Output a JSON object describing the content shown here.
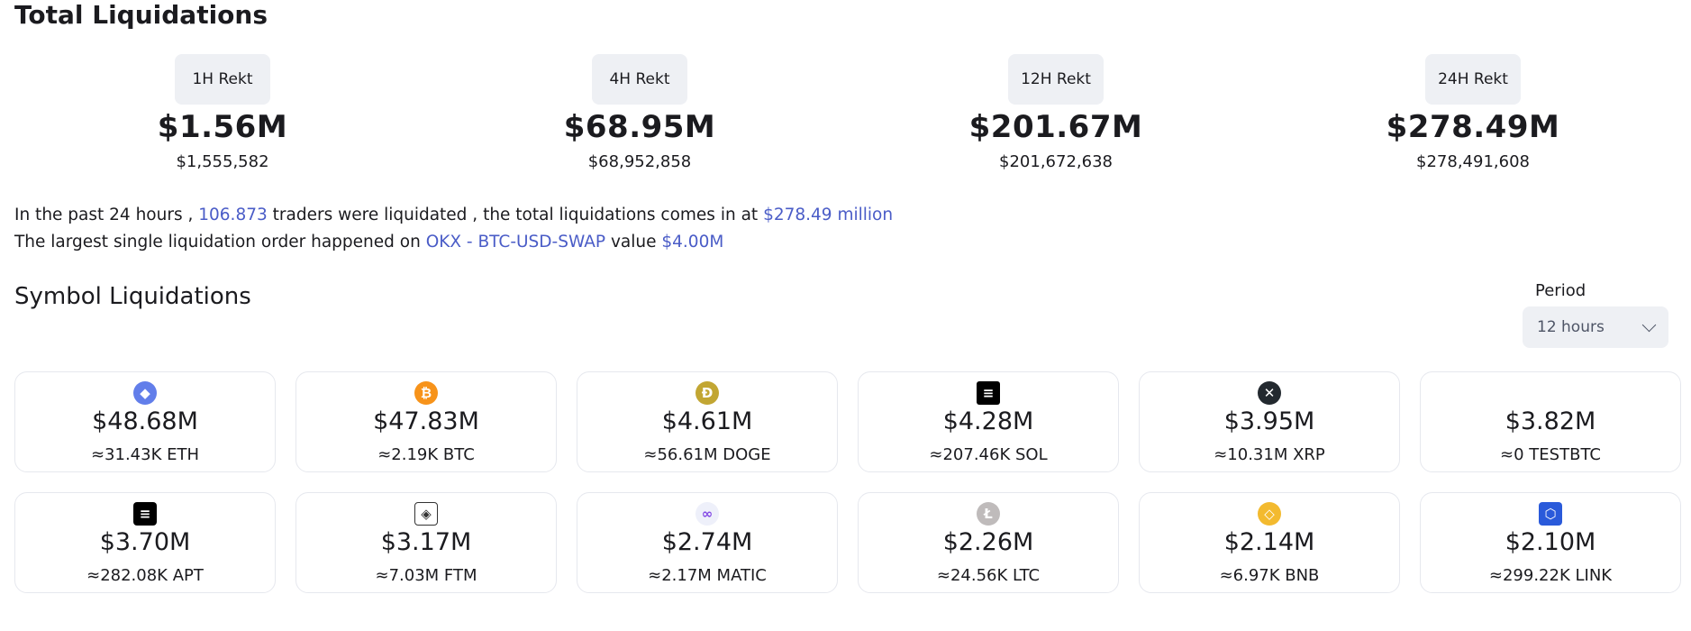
{
  "total": {
    "title": "Total Liquidations",
    "stats": [
      {
        "label": "1H Rekt",
        "value": "$1.56M",
        "exact": "$1,555,582"
      },
      {
        "label": "4H Rekt",
        "value": "$68.95M",
        "exact": "$68,952,858"
      },
      {
        "label": "12H Rekt",
        "value": "$201.67M",
        "exact": "$201,672,638"
      },
      {
        "label": "24H Rekt",
        "value": "$278.49M",
        "exact": "$278,491,608"
      }
    ]
  },
  "summary": {
    "line1_a": "In the past 24 hours ,",
    "traders": "106.873",
    "line1_b": "traders were liquidated , the total liquidations comes in at",
    "total_million": "$278.49 million",
    "line2_a": "The largest single liquidation order happened on",
    "order": "OKX - BTC-USD-SWAP",
    "line2_b": "value",
    "order_value": "$4.00M"
  },
  "symbols": {
    "title": "Symbol Liquidations",
    "period_label": "Period",
    "period_value": "12 hours",
    "cards": [
      {
        "icon": "ethereum-icon",
        "glyph": "◆",
        "amount": "$48.68M",
        "qty": "≈31.43K ETH"
      },
      {
        "icon": "bitcoin-icon",
        "glyph": "₿",
        "amount": "$47.83M",
        "qty": "≈2.19K BTC"
      },
      {
        "icon": "dogecoin-icon",
        "glyph": "Ð",
        "amount": "$4.61M",
        "qty": "≈56.61M DOGE"
      },
      {
        "icon": "solana-icon",
        "glyph": "≡",
        "amount": "$4.28M",
        "qty": "≈207.46K SOL"
      },
      {
        "icon": "xrp-icon",
        "glyph": "✕",
        "amount": "$3.95M",
        "qty": "≈10.31M XRP"
      },
      {
        "icon": "",
        "glyph": "",
        "amount": "$3.82M",
        "qty": "≈0 TESTBTC"
      },
      {
        "icon": "aptos-icon",
        "glyph": "≡",
        "amount": "$3.70M",
        "qty": "≈282.08K APT"
      },
      {
        "icon": "fantom-icon",
        "glyph": "◈",
        "amount": "$3.17M",
        "qty": "≈7.03M FTM"
      },
      {
        "icon": "polygon-icon",
        "glyph": "∞",
        "amount": "$2.74M",
        "qty": "≈2.17M MATIC"
      },
      {
        "icon": "litecoin-icon",
        "glyph": "Ł",
        "amount": "$2.26M",
        "qty": "≈24.56K LTC"
      },
      {
        "icon": "bnb-icon",
        "glyph": "◇",
        "amount": "$2.14M",
        "qty": "≈6.97K BNB"
      },
      {
        "icon": "chainlink-icon",
        "glyph": "⬡",
        "amount": "$2.10M",
        "qty": "≈299.22K LINK"
      }
    ]
  }
}
